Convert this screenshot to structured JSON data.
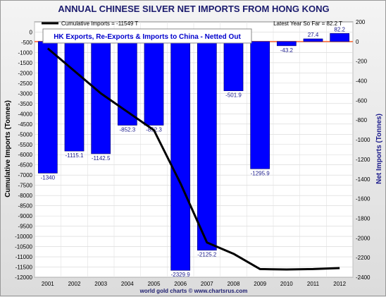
{
  "chart_data": {
    "type": "bar",
    "title": "ANNUAL CHINESE SILVER NET IMPORTS FROM HONG KONG",
    "subtitle": "HK Exports, Re-Exports & Imports to China - Netted Out",
    "note": "Latest Year So Far = 82.2 T",
    "footer": "world gold charts © www.chartsrus.com",
    "ylabel_left": "Cumulative Imports (Tonnes)",
    "ylabel_right": "Net Imports (Tonnes)",
    "categories": [
      "2001",
      "2002",
      "2003",
      "2004",
      "2005",
      "2006",
      "2007",
      "2008",
      "2009",
      "2010",
      "2011",
      "2012"
    ],
    "series": [
      {
        "kind": "bar",
        "axis": "right",
        "color": "#0000ff",
        "values": [
          -1340,
          -1115.1,
          -1142.5,
          -852.3,
          -852.3,
          -2329.9,
          -2125.2,
          -501.9,
          -1295.9,
          -43.2,
          27.4,
          82.2
        ],
        "labels": [
          "-1340",
          "-1115.1",
          "-1142.5",
          "-852.3",
          "-852.3",
          "-2329.9",
          "-2125.2",
          "-501.9",
          "-1295.9",
          "-43.2",
          "27.4",
          "82.2"
        ]
      },
      {
        "kind": "line",
        "axis": "left",
        "name": "Cumulative Imports = -11549 T",
        "color": "#000000",
        "values": [
          -800,
          -1900,
          -3000,
          -3900,
          -4800,
          -7400,
          -10300,
          -10850,
          -11600,
          -11620,
          -11600,
          -11549
        ]
      }
    ],
    "left_axis": {
      "min": -12000,
      "max": 500,
      "ticks": [
        "0",
        "-500",
        "-1000",
        "-1500",
        "-2000",
        "-2500",
        "-3000",
        "-3500",
        "-4000",
        "-4500",
        "-5000",
        "-5500",
        "-6000",
        "-6500",
        "-7000",
        "-7500",
        "-8000",
        "-8500",
        "-9000",
        "-9500",
        "-10000",
        "-10500",
        "-11000",
        "-11500",
        "-12000"
      ]
    },
    "right_axis": {
      "min": -2400,
      "max": 200,
      "ticks": [
        "200",
        "0",
        "-200",
        "-400",
        "-600",
        "-800",
        "-1000",
        "-1200",
        "-1400",
        "-1600",
        "-1800",
        "-2000",
        "-2200",
        "-2400"
      ]
    },
    "grid": true,
    "legend_position": "top-left",
    "reference_line_color": "#ff6633"
  }
}
